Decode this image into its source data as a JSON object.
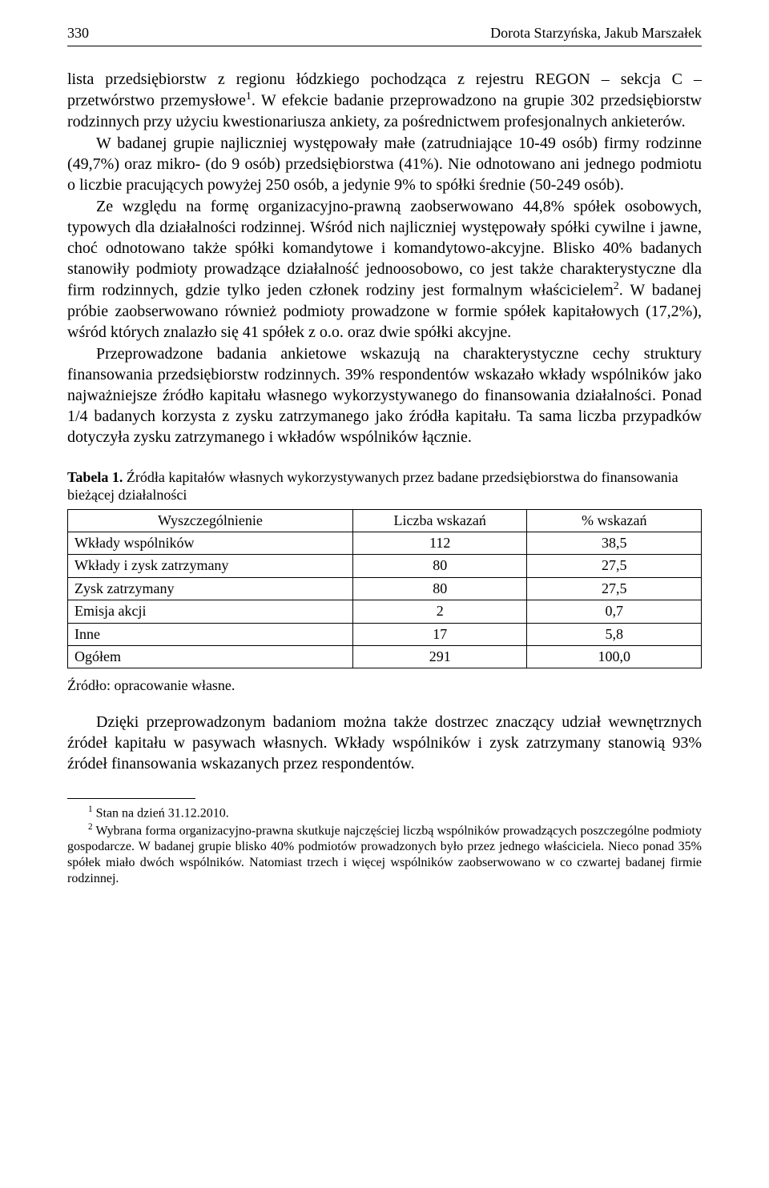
{
  "header": {
    "page_number": "330",
    "authors": "Dorota Starzyńska, Jakub Marszałek"
  },
  "paragraphs": {
    "p1": "lista przedsiębiorstw z regionu łódzkiego pochodząca z rejestru REGON – sekcja C – przetwórstwo przemysłowe",
    "p1_sup": "1",
    "p1_after": ". W efekcie badanie przeprowadzono na grupie 302 przedsiębiorstw rodzinnych przy użyciu kwestionariusza ankiety, za pośrednictwem profesjonalnych ankieterów.",
    "p2a": "W badanej grupie najliczniej występowały małe (zatrudniające 10-49 osób) firmy rodzinne (49,7%) oraz mikro- (do 9 osób) przedsiębiorstwa (41%). Nie odnotowano ani jednego podmiotu o liczbie pracujących powyżej 250 osób, a jedynie 9% to spółki średnie (50-249 osób).",
    "p3a": "Ze względu na formę organizacyjno-prawną zaobserwowano 44,8% spółek osobowych, typowych dla działalności rodzinnej. Wśród nich najliczniej występowały spółki cywilne i jawne, choć odnotowano także spółki komandytowe i komandytowo-akcyjne. Blisko 40% badanych stanowiły podmioty prowadzące działalność jednoosobowo, co jest także charakterystyczne dla firm rodzinnych, gdzie tylko jeden członek rodziny jest formalnym właścicielem",
    "p3_sup": "2",
    "p3b": ". W badanej próbie zaobserwowano również podmioty prowadzone w formie spółek kapitałowych (17,2%), wśród których znalazło się 41 spółek z o.o. oraz dwie spółki akcyjne.",
    "p4": "Przeprowadzone badania ankietowe wskazują na charakterystyczne cechy struktury finansowania przedsiębiorstw rodzinnych. 39% respondentów wskazało wkłady wspólników jako najważniejsze źródło kapitału własnego wykorzystywanego do finansowania działalności. Ponad 1/4 badanych korzysta z zysku zatrzymanego jako źródła kapitału. Ta sama liczba przypadków dotyczyła zysku zatrzymanego i wkładów wspólników łącznie.",
    "p5": "Dzięki przeprowadzonym badaniom można także dostrzec znaczący udział wewnętrznych źródeł kapitału w pasywach własnych. Wkłady wspólników i zysk zatrzymany stanowią 93% źródeł finansowania wskazanych przez respondentów."
  },
  "table": {
    "caption_label": "Tabela 1.",
    "caption_text": " Źródła kapitałów własnych wykorzystywanych przez badane przedsiębiorstwa do finansowania bieżącej działalności",
    "columns": [
      "Wyszczególnienie",
      "Liczba wskazań",
      "% wskazań"
    ],
    "rows": [
      [
        "Wkłady wspólników",
        "112",
        "38,5"
      ],
      [
        "Wkłady i zysk zatrzymany",
        "80",
        "27,5"
      ],
      [
        "Zysk zatrzymany",
        "80",
        "27,5"
      ],
      [
        "Emisja akcji",
        "2",
        "0,7"
      ],
      [
        "Inne",
        "17",
        "5,8"
      ],
      [
        "Ogółem",
        "291",
        "100,0"
      ]
    ],
    "source": "Źródło: opracowanie własne."
  },
  "footnotes": {
    "f1_num": "1",
    "f1_text": " Stan na dzień 31.12.2010.",
    "f2_num": "2",
    "f2_text": " Wybrana forma organizacyjno-prawna skutkuje najczęściej liczbą wspólników prowadzących poszczególne podmioty gospodarcze. W badanej grupie blisko 40% podmiotów prowadzonych było przez jednego właściciela. Nieco ponad 35% spółek miało dwóch wspólników. Natomiast trzech i więcej wspólników zaobserwowano w co czwartej badanej firmie rodzinnej."
  }
}
